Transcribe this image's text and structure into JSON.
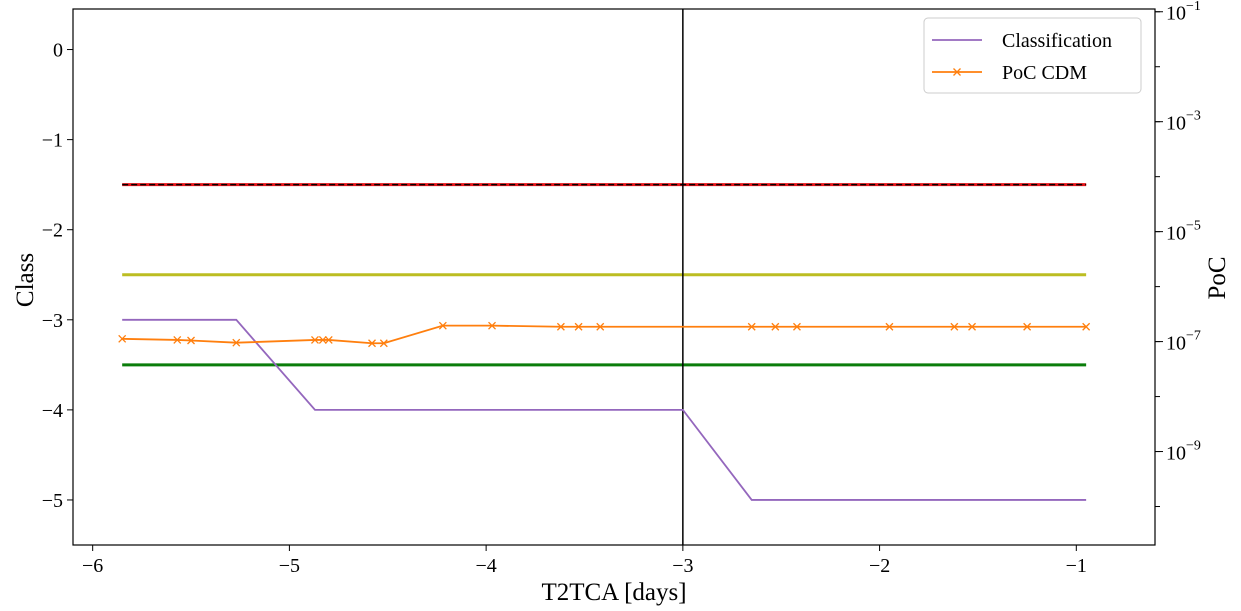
{
  "chart_data": {
    "type": "line",
    "xlabel": "T2TCA [days]",
    "ylabel": "Class",
    "y2label": "PoC",
    "xlim": [
      -6.1,
      -0.6
    ],
    "ylim": [
      -5.5,
      0.45
    ],
    "y2scale": "log",
    "y2lim_exponent": [
      -10.7,
      -0.95
    ],
    "x_ticks": [
      -6,
      -5,
      -4,
      -3,
      -2,
      -1
    ],
    "x_tick_labels": [
      "−6",
      "−5",
      "−4",
      "−3",
      "−2",
      "−1"
    ],
    "y_ticks": [
      0,
      -1,
      -2,
      -3,
      -4,
      -5
    ],
    "y_tick_labels": [
      "0",
      "−1",
      "−2",
      "−3",
      "−4",
      "−5"
    ],
    "y2_ticks": [
      {
        "base": "10",
        "exp": "−9",
        "value_exponent": -9
      },
      {
        "base": "10",
        "exp": "−7",
        "value_exponent": -7
      },
      {
        "base": "10",
        "exp": "−5",
        "value_exponent": -5
      },
      {
        "base": "10",
        "exp": "−3",
        "value_exponent": -3
      },
      {
        "base": "10",
        "exp": "−1",
        "value_exponent": -1
      }
    ],
    "legend_position": "top-right",
    "grid": false,
    "vertical_line_x": -3.0,
    "threshold_lines": [
      {
        "y": -1.5,
        "color": "#e8141a",
        "dashed_overlay_color": "#000000"
      },
      {
        "y": -2.5,
        "color": "#bcbd22"
      },
      {
        "y": -3.5,
        "color": "#0a7d0a"
      }
    ],
    "threshold_x_range": [
      -5.85,
      -0.95
    ],
    "series": [
      {
        "name": "Classification",
        "axis": "left",
        "color": "#9467bd",
        "marker": "none",
        "x": [
          -5.85,
          -5.27,
          -4.87,
          -3.0,
          -2.65,
          -0.95
        ],
        "y": [
          -3,
          -3,
          -4,
          -4,
          -5,
          -5
        ]
      },
      {
        "name": "PoC CDM",
        "axis": "right",
        "color": "#ff7f0e",
        "marker": "x",
        "x": [
          -5.85,
          -5.57,
          -5.5,
          -5.27,
          -4.87,
          -4.83,
          -4.8,
          -4.58,
          -4.52,
          -4.22,
          -3.97,
          -3.62,
          -3.53,
          -3.42,
          -2.65,
          -2.53,
          -2.42,
          -1.95,
          -1.62,
          -1.53,
          -1.25,
          -0.95
        ],
        "y_exponent": [
          -6.95,
          -6.97,
          -6.98,
          -7.02,
          -6.97,
          -6.97,
          -6.97,
          -7.03,
          -7.03,
          -6.71,
          -6.71,
          -6.73,
          -6.73,
          -6.73,
          -6.73,
          -6.73,
          -6.73,
          -6.73,
          -6.73,
          -6.73,
          -6.73,
          -6.73
        ]
      }
    ]
  }
}
